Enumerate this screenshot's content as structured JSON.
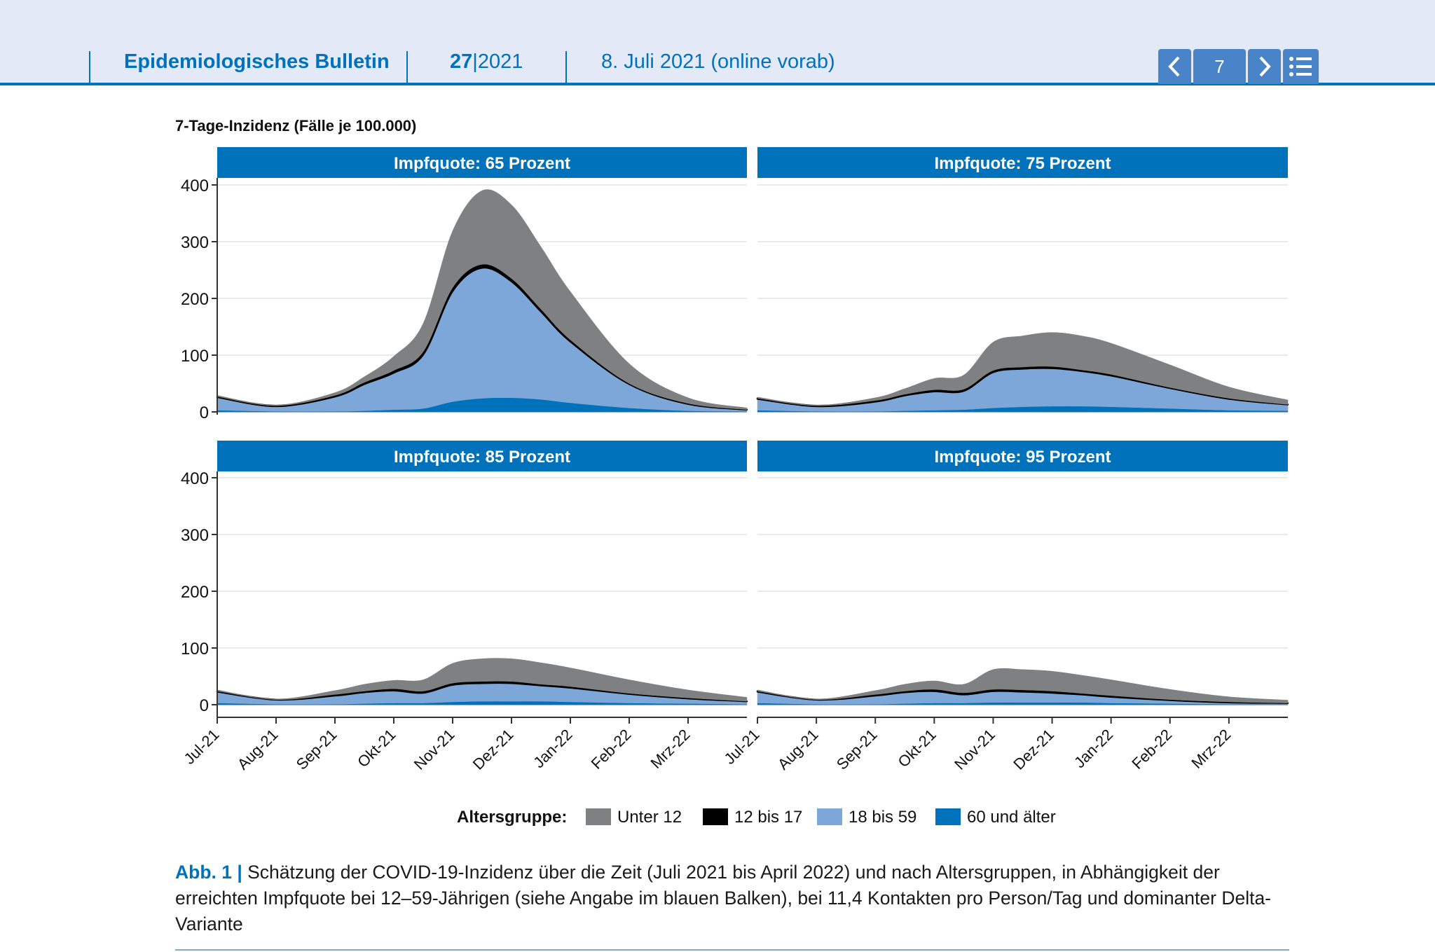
{
  "header": {
    "title": "Epidemiologisches Bulletin",
    "issue_number": "27",
    "issue_year": "2021",
    "date": "8. Juli 2021 (online vorab)",
    "page": "7",
    "prev_icon": "chevron-left-icon",
    "next_icon": "chevron-right-icon",
    "menu_icon": "list-icon"
  },
  "chart_data": {
    "type": "area",
    "stacked": true,
    "ylabel": "7-Tage-Inzidenz (Fälle je 100.000)",
    "ylim": [
      0,
      400
    ],
    "yticks": [
      0,
      100,
      200,
      300,
      400
    ],
    "xlim": [
      0,
      9
    ],
    "xticks": [
      "Jul-21",
      "Aug-21",
      "Sep-21",
      "Okt-21",
      "Nov-21",
      "Dez-21",
      "Jan-22",
      "Feb-22",
      "Mrz-22"
    ],
    "grid": true,
    "legend": {
      "title": "Altersgruppe:",
      "placement": "bottom",
      "entries": [
        "Unter 12",
        "12 bis 17",
        "18 bis 59",
        "60 und älter"
      ]
    },
    "colors": {
      "Unter 12": "#7f8082",
      "12 bis 17": "#000000",
      "18 bis 59": "#7ea7d9",
      "60 und älter": "#0072bb",
      "panel_header": "#0072bb"
    },
    "x": [
      0,
      1,
      2,
      2.5,
      3,
      3.5,
      4,
      4.5,
      5,
      5.5,
      6,
      7,
      8,
      9
    ],
    "panels": [
      {
        "title": "Impfquote: 65 Prozent",
        "series": [
          {
            "name": "60 und älter",
            "values": [
              3,
              1,
              1,
              2,
              4,
              6,
              18,
              24,
              25,
              22,
              16,
              7,
              2,
              1
            ]
          },
          {
            "name": "18 bis 59",
            "values": [
              23,
              9,
              26,
              47,
              65,
              95,
              195,
              230,
              205,
              155,
              108,
              42,
              12,
              3
            ]
          },
          {
            "name": "12 bis 17",
            "values": [
              1,
              1,
              2,
              3,
              4,
              5,
              6,
              6,
              5,
              4,
              3,
              1,
              1,
              0
            ]
          },
          {
            "name": "Unter 12",
            "values": [
              2,
              1,
              5,
              10,
              25,
              50,
              100,
              130,
              130,
              110,
              85,
              35,
              10,
              3
            ]
          }
        ]
      },
      {
        "title": "Impfquote: 75 Prozent",
        "series": [
          {
            "name": "60 und älter",
            "values": [
              3,
              1,
              1,
              2,
              3,
              4,
              7,
              9,
              10,
              10,
              9,
              6,
              3,
              2
            ]
          },
          {
            "name": "18 bis 59",
            "values": [
              20,
              9,
              17,
              27,
              33,
              33,
              63,
              67,
              67,
              62,
              55,
              36,
              20,
              11
            ]
          },
          {
            "name": "12 bis 17",
            "values": [
              1,
              1,
              2,
              2,
              3,
              3,
              3,
              3,
              3,
              2,
              2,
              1,
              1,
              0
            ]
          },
          {
            "name": "Unter 12",
            "values": [
              2,
              1,
              5,
              10,
              20,
              25,
              50,
              55,
              60,
              60,
              55,
              40,
              20,
              8
            ]
          }
        ]
      },
      {
        "title": "Impfquote: 85 Prozent",
        "series": [
          {
            "name": "60 und älter",
            "values": [
              3,
              1,
              1,
              2,
              3,
              3,
              5,
              6,
              6,
              6,
              5,
              3,
              2,
              1
            ]
          },
          {
            "name": "18 bis 59",
            "values": [
              20,
              8,
              15,
              20,
              22,
              18,
              30,
              32,
              32,
              28,
              25,
              16,
              9,
              5
            ]
          },
          {
            "name": "12 bis 17",
            "values": [
              1,
              0,
              2,
              2,
              3,
              3,
              3,
              3,
              3,
              2,
              2,
              1,
              1,
              0
            ]
          },
          {
            "name": "Unter 12",
            "values": [
              2,
              1,
              7,
              12,
              15,
              20,
              35,
              40,
              40,
              38,
              33,
              24,
              14,
              7
            ]
          }
        ]
      },
      {
        "title": "Impfquote: 95 Prozent",
        "series": [
          {
            "name": "60 und älter",
            "values": [
              3,
              1,
              1,
              2,
              3,
              3,
              4,
              4,
              4,
              4,
              3,
              2,
              1,
              1
            ]
          },
          {
            "name": "18 bis 59",
            "values": [
              20,
              8,
              15,
              20,
              21,
              15,
              20,
              19,
              17,
              14,
              11,
              6,
              3,
              2
            ]
          },
          {
            "name": "12 bis 17",
            "values": [
              1,
              0,
              2,
              2,
              3,
              3,
              3,
              3,
              3,
              2,
              2,
              1,
              1,
              0
            ]
          },
          {
            "name": "Unter 12",
            "values": [
              2,
              1,
              7,
              12,
              15,
              15,
              35,
              36,
              35,
              32,
              28,
              18,
              9,
              5
            ]
          }
        ]
      }
    ]
  },
  "caption": {
    "label": "Abb. 1 |",
    "text": " Schätzung der COVID-19-Inzidenz über die Zeit (Juli 2021 bis April 2022) und nach Altersgruppen, in Abhängigkeit der erreichten Impfquote bei 12–59-Jährigen (siehe Angabe im blauen Balken), bei 11,4 Kontakten pro Person/Tag und dominanter Delta-Variante"
  }
}
